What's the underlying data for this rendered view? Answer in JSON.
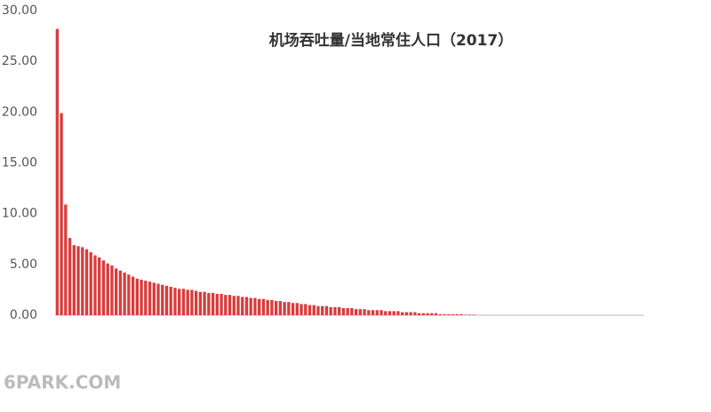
{
  "chart_data": {
    "type": "bar",
    "title": "机场吞吐量/当地常住人口（2017）",
    "watermark": "6PARK.COM",
    "color": "#d93b3b",
    "ylim": [
      0,
      30
    ],
    "yticks": [
      {
        "value": 0,
        "label": "0.00"
      },
      {
        "value": 5,
        "label": "5.00"
      },
      {
        "value": 10,
        "label": "10.00"
      },
      {
        "value": 15,
        "label": "15.00"
      },
      {
        "value": 20,
        "label": "20.00"
      },
      {
        "value": 25,
        "label": "25.00"
      },
      {
        "value": 30,
        "label": "30.00"
      }
    ],
    "values": [
      28.2,
      19.9,
      10.9,
      7.6,
      6.9,
      6.8,
      6.7,
      6.5,
      6.2,
      5.9,
      5.7,
      5.4,
      5.1,
      4.9,
      4.6,
      4.4,
      4.2,
      4.0,
      3.8,
      3.6,
      3.5,
      3.4,
      3.3,
      3.2,
      3.1,
      3.0,
      2.9,
      2.8,
      2.7,
      2.6,
      2.6,
      2.5,
      2.5,
      2.4,
      2.3,
      2.3,
      2.2,
      2.2,
      2.1,
      2.1,
      2.0,
      2.0,
      1.9,
      1.9,
      1.8,
      1.8,
      1.7,
      1.7,
      1.6,
      1.6,
      1.5,
      1.5,
      1.4,
      1.4,
      1.3,
      1.3,
      1.2,
      1.2,
      1.1,
      1.1,
      1.0,
      1.0,
      0.9,
      0.9,
      0.9,
      0.8,
      0.8,
      0.8,
      0.7,
      0.7,
      0.7,
      0.6,
      0.6,
      0.6,
      0.5,
      0.5,
      0.5,
      0.5,
      0.4,
      0.4,
      0.4,
      0.4,
      0.3,
      0.3,
      0.3,
      0.3,
      0.2,
      0.2,
      0.2,
      0.2,
      0.2,
      0.1,
      0.1,
      0.1,
      0.1,
      0.1,
      0.1,
      0.05,
      0.05,
      0.05,
      0,
      0,
      0,
      0,
      0,
      0,
      0,
      0,
      0,
      0,
      0,
      0,
      0,
      0,
      0,
      0,
      0,
      0,
      0,
      0,
      0,
      0,
      0,
      0,
      0,
      0,
      0,
      0,
      0,
      0,
      0,
      0,
      0,
      0,
      0,
      0,
      0,
      0,
      0,
      0
    ]
  }
}
